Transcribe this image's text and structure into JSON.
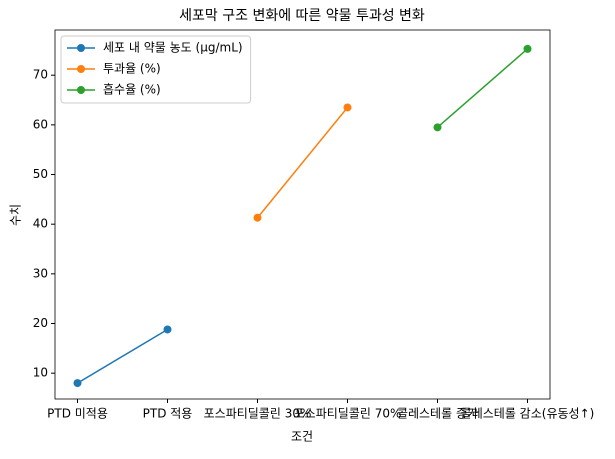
{
  "chart_data": {
    "type": "line",
    "title": "세포막 구조 변화에 따른 약물 투과성 변화",
    "x_label": "조건",
    "y_label": "수치",
    "categories": [
      "PTD 미적용",
      "PTD 적용",
      "포스파티딜콜린 30%",
      "포스파티딜콜린 70%",
      "콜레스테롤 증가",
      "콜레스테롤 감소(유동성↑)"
    ],
    "series": [
      {
        "name": "세포 내 약물 농도 (μg/mL)",
        "color": "#1f77b4",
        "values": [
          8.0,
          18.8,
          null,
          null,
          null,
          null
        ]
      },
      {
        "name": "투과율 (%)",
        "color": "#ff7f0e",
        "values": [
          null,
          null,
          41.3,
          63.5,
          null,
          null
        ]
      },
      {
        "name": "흡수율 (%)",
        "color": "#2ca02c",
        "values": [
          null,
          null,
          null,
          null,
          59.5,
          75.3
        ]
      }
    ],
    "ylim": [
      4.8,
      79.1
    ],
    "yticks": [
      10,
      20,
      30,
      40,
      50,
      60,
      70
    ],
    "legend": "upper left",
    "grid": false
  }
}
